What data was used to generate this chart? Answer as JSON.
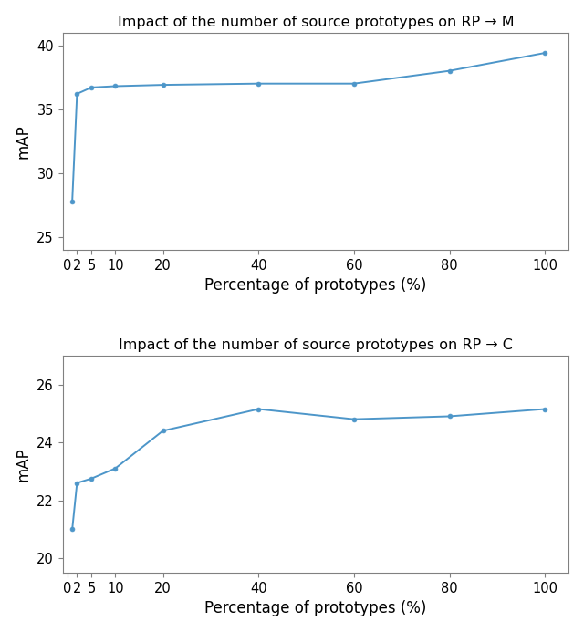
{
  "plot1": {
    "title": "Impact of the number of source prototypes on RP → M",
    "x": [
      1,
      2,
      5,
      10,
      20,
      40,
      60,
      80,
      100
    ],
    "y": [
      27.8,
      36.2,
      36.7,
      36.8,
      36.9,
      37.0,
      37.0,
      38.0,
      39.4
    ],
    "xlabel": "Percentage of prototypes (%)",
    "ylabel": "mAP",
    "xlim": [
      -1,
      105
    ],
    "ylim": [
      24.0,
      41.0
    ],
    "yticks": [
      25,
      30,
      35,
      40
    ],
    "xtick_labels": [
      "0",
      "2",
      "5",
      "10",
      "20",
      "40",
      "60",
      "80",
      "100"
    ],
    "xtick_pos": [
      0,
      2,
      5,
      10,
      20,
      40,
      60,
      80,
      100
    ],
    "color": "#4d96c9",
    "linewidth": 1.4,
    "markersize": 3.5
  },
  "plot2": {
    "title": "Impact of the number of source prototypes on RP → C",
    "x": [
      1,
      2,
      5,
      10,
      20,
      40,
      60,
      80,
      100
    ],
    "y": [
      21.0,
      22.6,
      22.75,
      23.1,
      24.4,
      25.15,
      24.8,
      24.9,
      25.15
    ],
    "xlabel": "Percentage of prototypes (%)",
    "ylabel": "mAP",
    "xlim": [
      -1,
      105
    ],
    "ylim": [
      19.5,
      27.0
    ],
    "yticks": [
      20,
      22,
      24,
      26
    ],
    "xtick_labels": [
      "0",
      "2",
      "5",
      "10",
      "20",
      "40",
      "60",
      "80",
      "100"
    ],
    "xtick_pos": [
      0,
      2,
      5,
      10,
      20,
      40,
      60,
      80,
      100
    ],
    "color": "#4d96c9",
    "linewidth": 1.4,
    "markersize": 3.5
  },
  "figure_bgcolor": "#ffffff",
  "title_fontsize": 11.5,
  "label_fontsize": 12,
  "tick_fontsize": 10.5,
  "spine_color": "#808080",
  "spine_linewidth": 0.8
}
